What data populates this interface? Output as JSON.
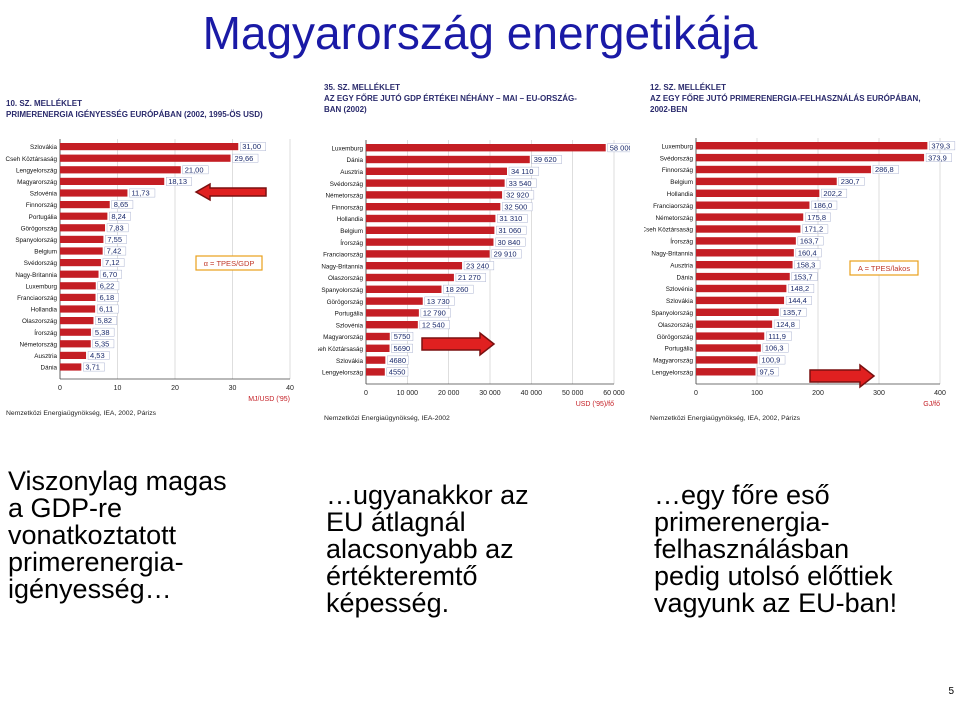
{
  "slide": {
    "title": "Magyarország energetikája",
    "page_number": "5",
    "captions": [
      [
        "Viszonylag magas",
        "a GDP-re",
        "vonatkoztatott",
        "primerenergia-",
        "igényesség…"
      ],
      [
        "…ugyanakkor az",
        "EU átlagnál",
        "alacsonyabb az",
        "értékteremtő",
        "képesség."
      ],
      [
        "…egy főre eső",
        "primerenergia-",
        "felhasználásban",
        "pedig utolsó előttiek",
        "vagyunk az EU-ban!"
      ]
    ]
  },
  "colors": {
    "title": "#1a1aa6",
    "bar": "#c41e24",
    "header": "#2a2a6c",
    "legend_box": "#e9a01b",
    "arrow_red": "#e02020",
    "arrow_dark": "#7a1010"
  },
  "chart_data": [
    {
      "type": "bar",
      "header_lines": [
        "10. SZ. MELLÉKLET",
        "PRIMERENERGIA IGÉNYESSÉG EURÓPÁBAN (2002, 1995-ÖS USD)"
      ],
      "categories": [
        "Szlovákia",
        "Cseh Köztársaság",
        "Lengyelország",
        "Magyarország",
        "Szlovénia",
        "Finnország",
        "Portugália",
        "Görögország",
        "Spanyolország",
        "Belgium",
        "Svédország",
        "Nagy-Britannia",
        "Luxemburg",
        "Franciaország",
        "Hollandia",
        "Olaszország",
        "Írország",
        "Németország",
        "Ausztria",
        "Dánia"
      ],
      "values": [
        31.0,
        29.66,
        21.0,
        18.13,
        11.73,
        8.65,
        8.24,
        7.83,
        7.55,
        7.42,
        7.12,
        6.7,
        6.22,
        6.18,
        6.11,
        5.82,
        5.38,
        5.35,
        4.53,
        3.71
      ],
      "value_labels": [
        "31,00",
        "29,66",
        "21,00",
        "18,13",
        "11,73",
        "8,65",
        "8,24",
        "7,83",
        "7,55",
        "7,42",
        "7,12",
        "6,70",
        "6,22",
        "6,18",
        "6,11",
        "5,82",
        "5,38",
        "5,35",
        "4,53",
        "3,71"
      ],
      "xlim": [
        0,
        40
      ],
      "xticks": [
        "0",
        "10",
        "20",
        "30",
        "40"
      ],
      "xlabel": "MJ/USD ('95)",
      "legend_box": "α = TPES/GDP",
      "source": "Nemzetközi Energiaügynökség, IEA, 2002, Párizs",
      "highlight": "Magyarország",
      "arrow": "left-pointing"
    },
    {
      "type": "bar",
      "header_lines": [
        "35. SZ. MELLÉKLET",
        "AZ EGY FŐRE JUTÓ GDP ÉRTÉKEI NÉHÁNY – MAI – EU-ORSZÁG-",
        "BAN (2002)"
      ],
      "categories": [
        "Luxemburg",
        "Dánia",
        "Ausztria",
        "Svédország",
        "Németország",
        "Finnország",
        "Hollandia",
        "Belgium",
        "Írország",
        "Franciaország",
        "Nagy-Britannia",
        "Olaszország",
        "Spanyolország",
        "Görögország",
        "Portugália",
        "Szlovénia",
        "Magyarország",
        "Cseh Köztársaság",
        "Szlovákia",
        "Lengyelország"
      ],
      "values": [
        58000,
        39620,
        34110,
        33540,
        32920,
        32500,
        31310,
        31060,
        30840,
        29910,
        23240,
        21270,
        18260,
        13730,
        12790,
        12540,
        5750,
        5690,
        4680,
        4550
      ],
      "value_labels": [
        "58 000",
        "39 620",
        "34 110",
        "33 540",
        "32 920",
        "32 500",
        "31 310",
        "31 060",
        "30 840",
        "29 910",
        "23 240",
        "21 270",
        "18 260",
        "13 730",
        "12 790",
        "12 540",
        "5750",
        "5690",
        "4680",
        "4550"
      ],
      "xlim": [
        0,
        60000
      ],
      "xticks": [
        "0",
        "10 000",
        "20 000",
        "30 000",
        "40 000",
        "50 000",
        "60 000"
      ],
      "xlabel": "USD ('95)/fő",
      "source": "Nemzetközi Energiaügynökség, IEA-2002",
      "highlight": "Magyarország",
      "arrow": "right-pointing"
    },
    {
      "type": "bar",
      "header_lines": [
        "12. SZ. MELLÉKLET",
        "AZ EGY FŐRE JUTÓ PRIMERENERGIA-FELHASZNÁLÁS EURÓPÁBAN,",
        "2002-BEN"
      ],
      "categories": [
        "Luxemburg",
        "Svédország",
        "Finnország",
        "Belgium",
        "Hollandia",
        "Franciaország",
        "Németország",
        "Cseh Köztársaság",
        "Írország",
        "Nagy-Britannia",
        "Ausztria",
        "Dánia",
        "Szlovénia",
        "Szlovákia",
        "Spanyolország",
        "Olaszország",
        "Görögország",
        "Portugália",
        "Magyarország",
        "Lengyelország"
      ],
      "values": [
        379.3,
        373.9,
        286.8,
        230.7,
        202.2,
        186.0,
        175.8,
        171.2,
        163.7,
        160.4,
        158.3,
        153.7,
        148.2,
        144.4,
        135.7,
        124.8,
        111.9,
        106.3,
        100.9,
        97.5
      ],
      "value_labels": [
        "379,3",
        "373,9",
        "286,8",
        "230,7",
        "202,2",
        "186,0",
        "175,8",
        "171,2",
        "163,7",
        "160,4",
        "158,3",
        "153,7",
        "148,2",
        "144,4",
        "135,7",
        "124,8",
        "111,9",
        "106,3",
        "100,9",
        "97,5"
      ],
      "xlim": [
        0,
        400
      ],
      "xticks": [
        "0",
        "100",
        "200",
        "300",
        "400"
      ],
      "xlabel": "GJ/fő",
      "legend_box": "A = TPES/lakos",
      "source": "Nemzetközi Energiaügynökség, IEA, 2002, Párizs",
      "highlight": "Magyarország",
      "arrow": "right-pointing"
    }
  ]
}
